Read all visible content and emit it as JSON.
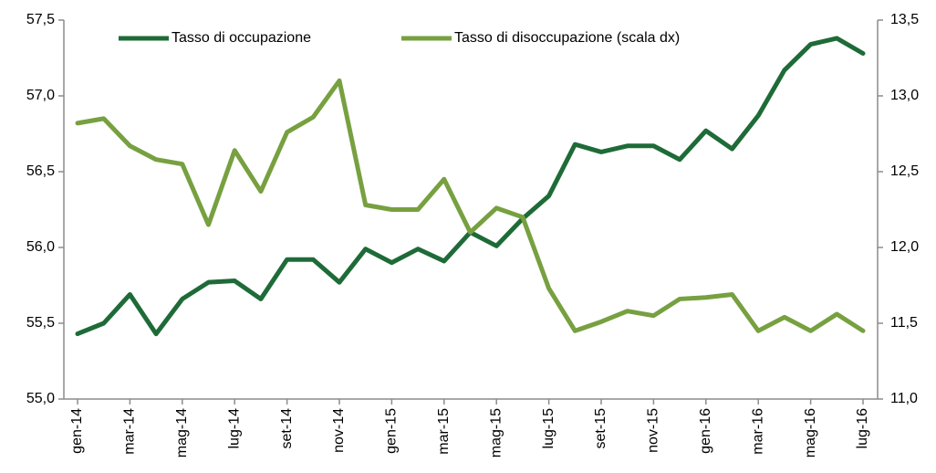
{
  "chart_data": {
    "type": "line",
    "categories": [
      "gen-14",
      null,
      "mar-14",
      null,
      "mag-14",
      null,
      "lug-14",
      null,
      "set-14",
      null,
      "nov-14",
      null,
      "gen-15",
      null,
      "mar-15",
      null,
      "mag-15",
      null,
      "lug-15",
      null,
      "set-15",
      null,
      "nov-15",
      null,
      "gen-16",
      null,
      "mar-16",
      null,
      "mag-16",
      null,
      "lug-16"
    ],
    "series": [
      {
        "name": "Tasso di occupazione",
        "color": "#1e6b38",
        "values": [
          55.43,
          55.5,
          55.69,
          55.43,
          55.66,
          55.77,
          55.78,
          55.66,
          55.92,
          55.92,
          55.77,
          55.99,
          55.9,
          55.99,
          55.91,
          56.1,
          56.01,
          56.19,
          56.34,
          56.68,
          56.63,
          56.67,
          56.67,
          56.58,
          56.77,
          56.65,
          56.87,
          57.17,
          57.34,
          57.38,
          57.28
        ]
      },
      {
        "name": "Tasso di disoccupazione (scala dx)",
        "color": "#77a040",
        "axis": "y2",
        "values": [
          12.82,
          12.85,
          12.67,
          12.58,
          12.55,
          12.15,
          12.64,
          12.37,
          12.76,
          12.86,
          13.1,
          12.28,
          12.25,
          12.25,
          12.45,
          12.1,
          12.26,
          12.2,
          11.73,
          11.45,
          11.51,
          11.58,
          11.55,
          11.66,
          11.67,
          11.69,
          11.45,
          11.54,
          11.45,
          11.56,
          11.45
        ]
      }
    ],
    "ylim": [
      55.0,
      57.5
    ],
    "yticks": [
      {
        "value": 55.0,
        "label": "55,0"
      },
      {
        "value": 55.5,
        "label": "55,5"
      },
      {
        "value": 56.0,
        "label": "56,0"
      },
      {
        "value": 56.5,
        "label": "56,5"
      },
      {
        "value": 57.0,
        "label": "57,0"
      },
      {
        "value": 57.5,
        "label": "57,5"
      }
    ],
    "y2lim": [
      11.0,
      13.5
    ],
    "y2ticks": [
      {
        "value": 11.0,
        "label": "11,0"
      },
      {
        "value": 11.5,
        "label": "11,5"
      },
      {
        "value": 12.0,
        "label": "12,0"
      },
      {
        "value": 12.5,
        "label": "12,5"
      },
      {
        "value": 13.0,
        "label": "13,0"
      },
      {
        "value": 13.5,
        "label": "13,5"
      }
    ],
    "legend": "top"
  }
}
